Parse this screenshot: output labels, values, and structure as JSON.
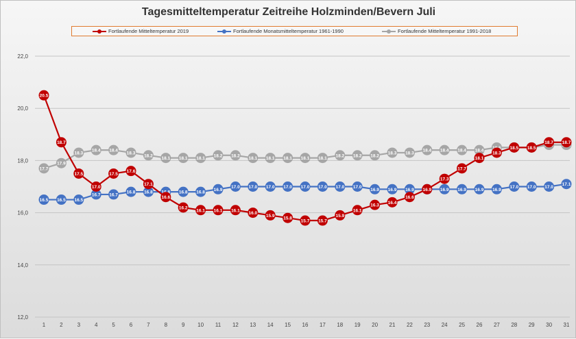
{
  "chart_data": {
    "type": "line",
    "title": "Tagesmitteltemperatur Zeitreihe Holzminden/Bevern Juli",
    "xlabel": "",
    "ylabel": "",
    "ylim": [
      12,
      22
    ],
    "yticks": [
      "12,0",
      "14,0",
      "16,0",
      "18,0",
      "20,0",
      "22,0"
    ],
    "y_tick_values": [
      12,
      14,
      16,
      18,
      20,
      22
    ],
    "categories": [
      "1",
      "2",
      "3",
      "4",
      "5",
      "6",
      "7",
      "8",
      "9",
      "10",
      "11",
      "12",
      "13",
      "14",
      "15",
      "16",
      "17",
      "18",
      "19",
      "20",
      "21",
      "22",
      "23",
      "24",
      "25",
      "26",
      "27",
      "28",
      "29",
      "30",
      "31"
    ],
    "legend_position": "top",
    "series": [
      {
        "name": "Fortlaufende Mitteltemperatur 2019",
        "color": "#c00000",
        "values": [
          20.5,
          18.7,
          17.5,
          17.0,
          17.5,
          17.6,
          17.1,
          16.6,
          16.2,
          16.1,
          16.1,
          16.1,
          16.0,
          15.9,
          15.8,
          15.7,
          15.7,
          15.9,
          16.1,
          16.3,
          16.4,
          16.6,
          16.9,
          17.3,
          17.7,
          18.1,
          18.3,
          18.5,
          18.5,
          18.7,
          18.7
        ],
        "labels": [
          "20.5",
          "18.7",
          "17.5",
          "17.0",
          "17.5",
          "17.6",
          "17.1",
          "16.6",
          "16.2",
          "16.1",
          "16.1",
          "16.1",
          "16.0",
          "15.9",
          "15.8",
          "15.7",
          "15.7",
          "15.9",
          "16.1",
          "16.3",
          "16.4",
          "16.6",
          "16.9",
          "17.3",
          "17.7",
          "18.1",
          "18.3",
          "18.5",
          "18.5",
          "18.7",
          "18.7"
        ]
      },
      {
        "name": "Fortlaufende Monatsmitteltemperatur 1961-1990",
        "color": "#4472c4",
        "values": [
          16.5,
          16.5,
          16.5,
          16.7,
          16.7,
          16.8,
          16.8,
          16.8,
          16.8,
          16.8,
          16.9,
          17.0,
          17.0,
          17.0,
          17.0,
          17.0,
          17.0,
          17.0,
          17.0,
          16.9,
          16.9,
          16.9,
          16.9,
          16.9,
          16.9,
          16.9,
          16.9,
          17.0,
          17.0,
          17.0,
          17.1
        ],
        "labels": [
          "16.5",
          "16.5",
          "16.5",
          "16.7",
          "16.7",
          "16.8",
          "16.8",
          "16.8",
          "16.8",
          "16.8",
          "16.9",
          "17.0",
          "17.0",
          "17.0",
          "17.0",
          "17.0",
          "17.0",
          "17.0",
          "17.0",
          "16.9",
          "16.9",
          "16.9",
          "16.9",
          "16.9",
          "16.9",
          "16.9",
          "16.9",
          "17.0",
          "17.0",
          "17.0",
          "17.1"
        ]
      },
      {
        "name": "Fortlaufende Mitteltemperatur 1991-2018",
        "color": "#a6a6a6",
        "values": [
          17.7,
          17.9,
          18.3,
          18.4,
          18.4,
          18.3,
          18.2,
          18.1,
          18.1,
          18.1,
          18.2,
          18.2,
          18.1,
          18.1,
          18.1,
          18.1,
          18.1,
          18.2,
          18.2,
          18.2,
          18.3,
          18.3,
          18.4,
          18.4,
          18.4,
          18.4,
          18.5,
          18.5,
          18.5,
          18.6,
          18.6
        ],
        "labels": [
          "17.7",
          "17.9",
          "18.3",
          "18.4",
          "18.4",
          "18.3",
          "18.2",
          "18.1",
          "18.1",
          "18.1",
          "18.2",
          "18.2",
          "18.1",
          "18.1",
          "18.1",
          "18.1",
          "18.1",
          "18.2",
          "18.2",
          "18.2",
          "18.3",
          "18.3",
          "18.4",
          "18.4",
          "18.4",
          "18.4",
          "18.5",
          "18.5",
          "18.5",
          "18.6",
          "18.6"
        ]
      }
    ]
  },
  "legend": [
    {
      "label": "Fortlaufende Mitteltemperatur 2019",
      "color": "#c00000"
    },
    {
      "label": "Fortlaufende Monatsmitteltemperatur 1961-1990",
      "color": "#4472c4"
    },
    {
      "label": "Fortlaufende Mitteltemperatur 1991-2018",
      "color": "#a6a6a6"
    }
  ]
}
